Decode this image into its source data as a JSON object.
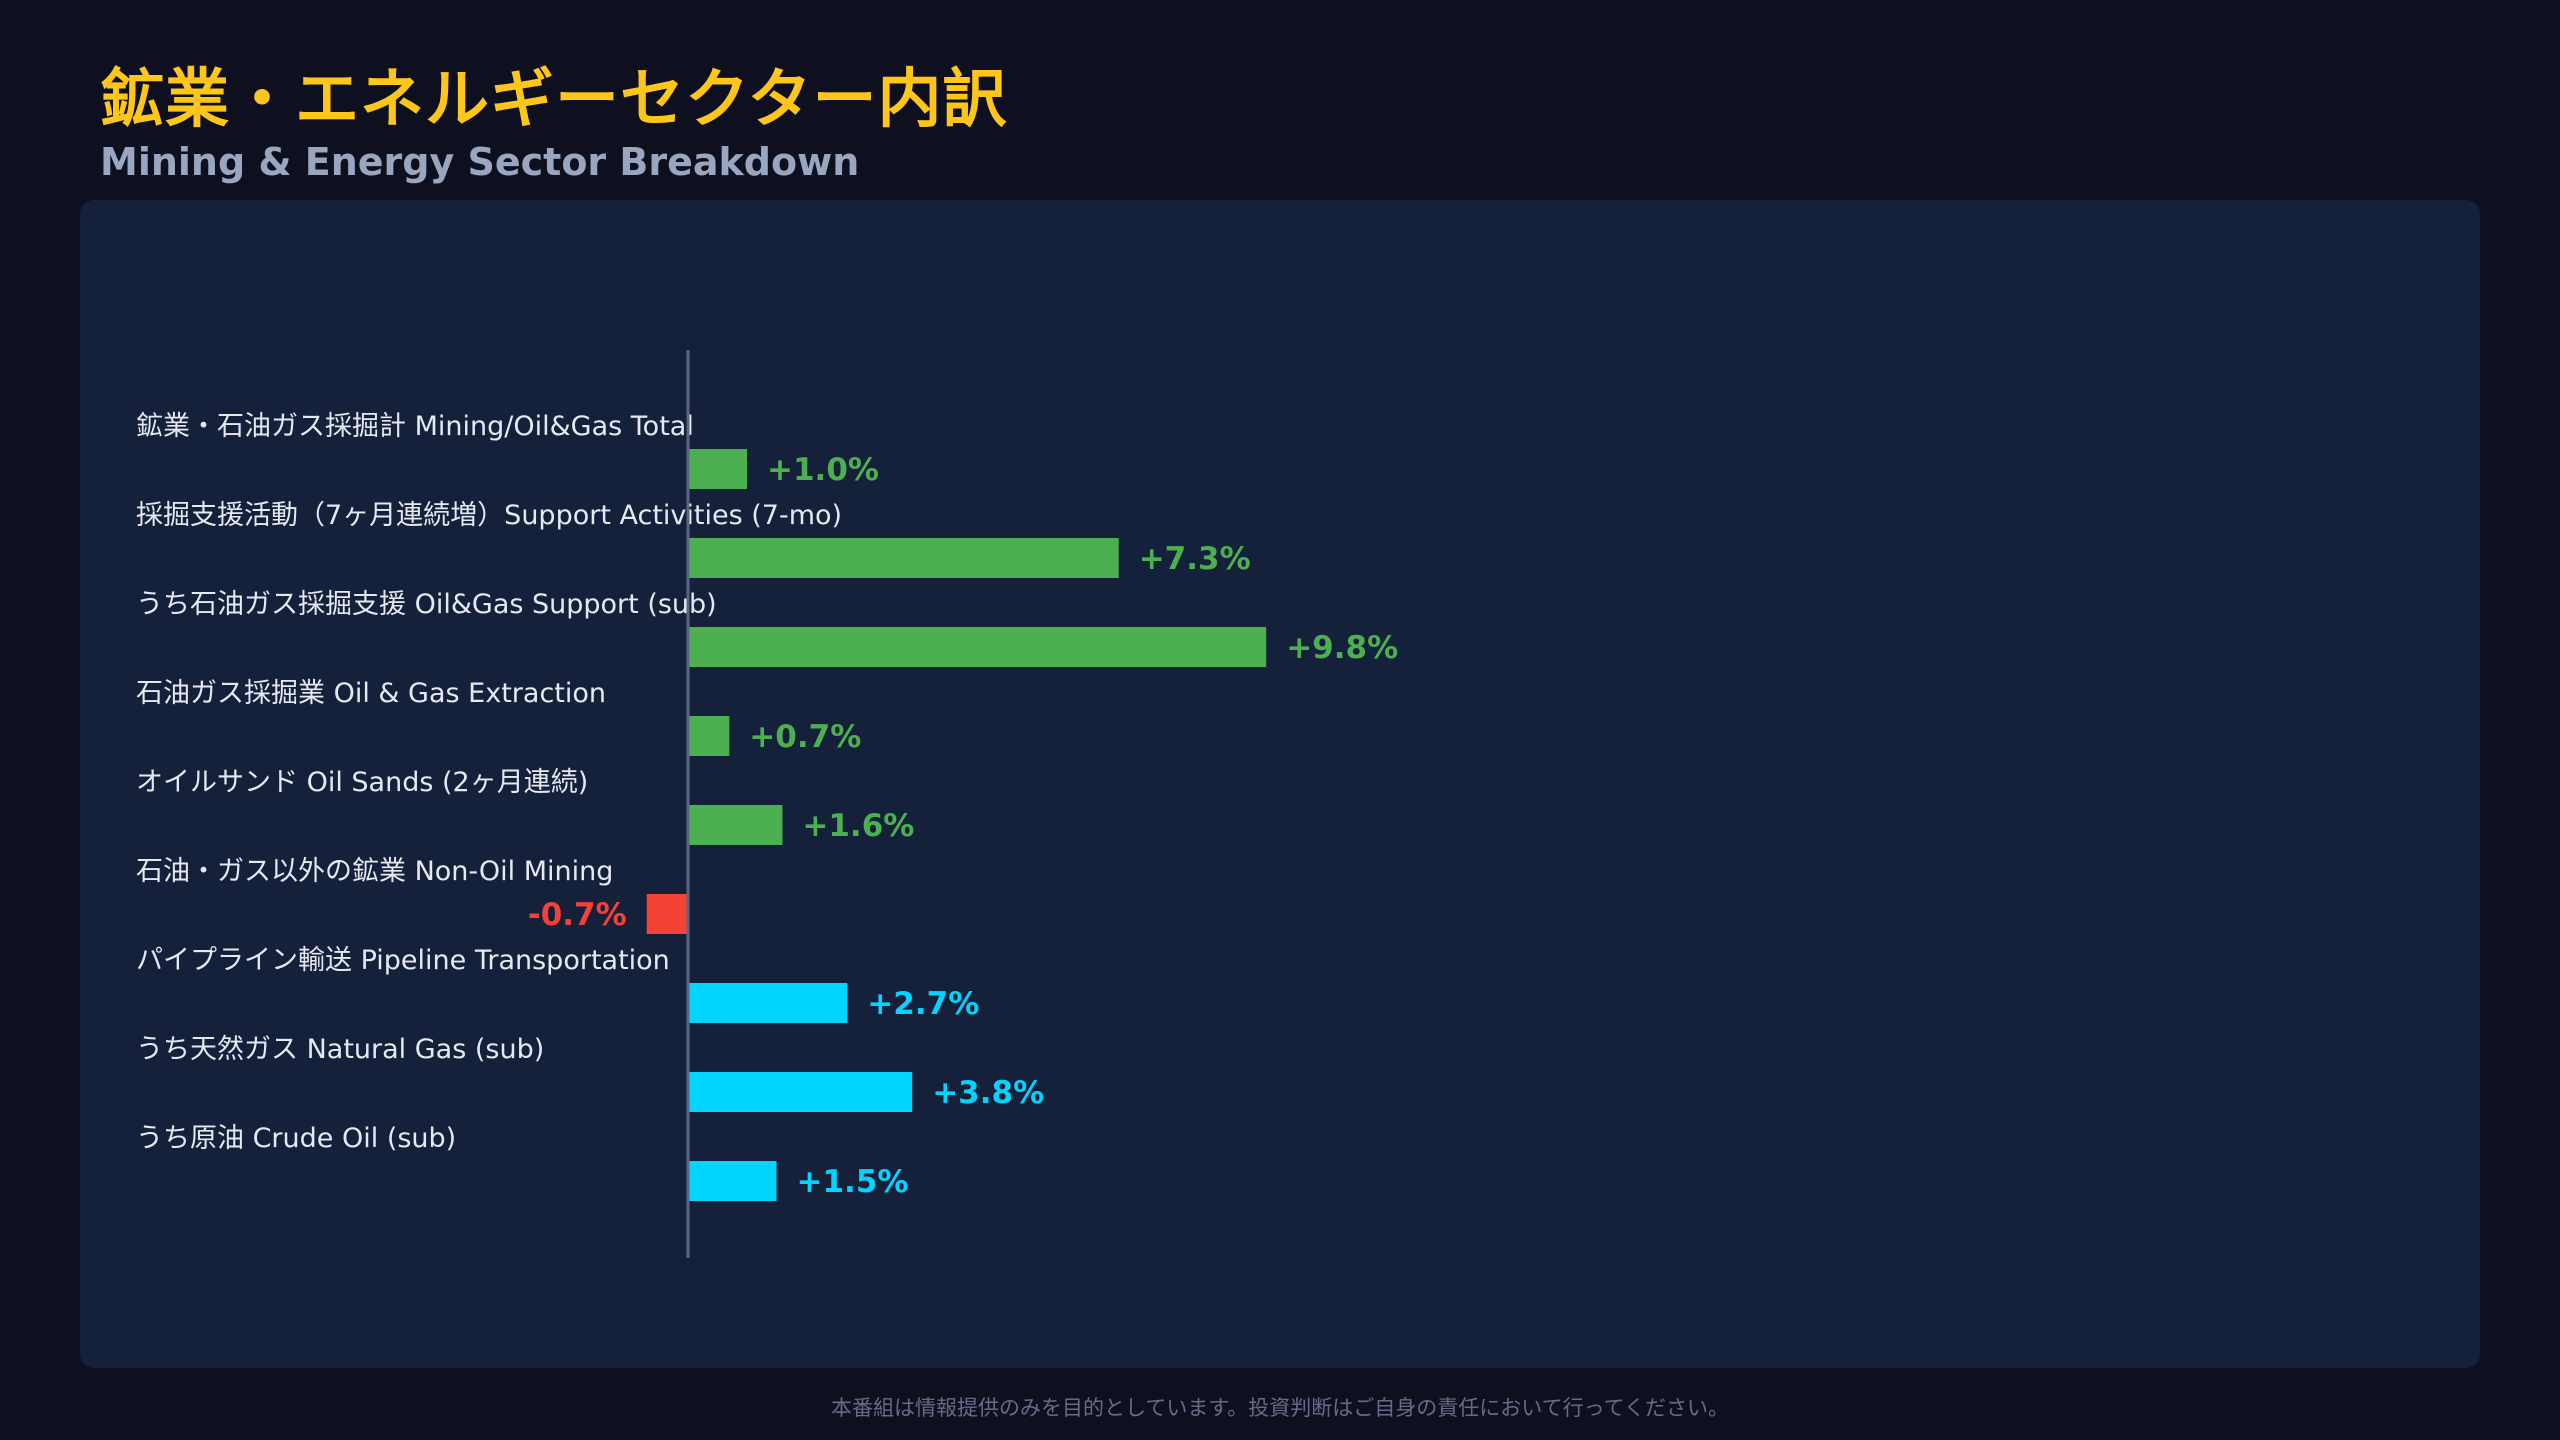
{
  "header": {
    "title": "鉱業・エネルギーセクター内訳",
    "subtitle": "Mining & Energy Sector Breakdown"
  },
  "footer": {
    "disclaimer": "本番組は情報提供のみを目的としています。投資判断はご自身の責任において行ってください。"
  },
  "colors": {
    "mining_positive": "#4caf50",
    "negative": "#f44336",
    "pipeline": "#00d4ff",
    "axis": "#5c6488"
  },
  "chart_data": {
    "type": "bar",
    "orientation": "horizontal",
    "xlim": [
      -1.5,
      16
    ],
    "grid": false,
    "categories": [
      "鉱業・石油ガス採掘計 Mining/Oil&Gas Total",
      "採掘支援活動（7ヶ月連続増）Support Activities (7-mo)",
      "うち石油ガス採掘支援 Oil&Gas Support (sub)",
      "石油ガス採掘業 Oil & Gas Extraction",
      "オイルサンド Oil Sands (2ヶ月連続)",
      "石油・ガス以外の鉱業 Non-Oil Mining",
      "パイプライン輸送 Pipeline Transportation",
      "うち天然ガス Natural Gas (sub)",
      "うち原油 Crude Oil (sub)"
    ],
    "values": [
      1.0,
      7.3,
      9.8,
      0.7,
      1.6,
      -0.7,
      2.7,
      3.8,
      1.5
    ],
    "value_labels": [
      "+1.0%",
      "+7.3%",
      "+9.8%",
      "+0.7%",
      "+1.6%",
      "-0.7%",
      "+2.7%",
      "+3.8%",
      "+1.5%"
    ],
    "groups": [
      "mining",
      "mining",
      "mining",
      "mining",
      "mining",
      "mining",
      "pipeline",
      "pipeline",
      "pipeline"
    ],
    "unit": "%"
  }
}
